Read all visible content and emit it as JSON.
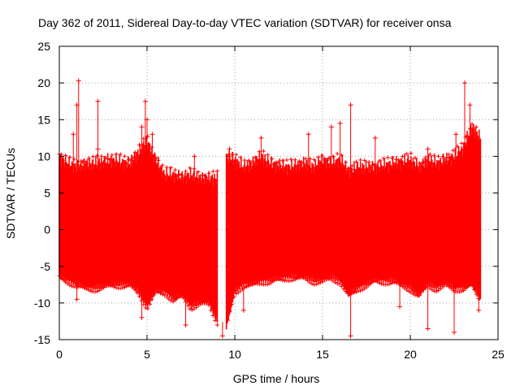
{
  "chart_data": {
    "type": "scatter",
    "title": "Day 362 of 2011, Sidereal Day-to-day VTEC variation (SDTVAR) for receiver onsa",
    "xlabel": "GPS time / hours",
    "ylabel": "SDTVAR / TECUs",
    "xlim": [
      0,
      25
    ],
    "ylim": [
      -15,
      25
    ],
    "xticks": [
      0,
      5,
      10,
      15,
      20,
      25
    ],
    "yticks": [
      -15,
      -10,
      -5,
      0,
      5,
      10,
      15,
      20,
      25
    ],
    "xtick_labels": [
      "0",
      "5",
      "10",
      "15",
      "20",
      "25"
    ],
    "ytick_labels": [
      "-15",
      "-10",
      "-5",
      "0",
      "5",
      "10",
      "15",
      "20",
      "25"
    ],
    "grid": true,
    "marker": "plus",
    "series_color": "#ff0000",
    "envelope": {
      "x": [
        0.0,
        0.5,
        1.0,
        1.5,
        2.0,
        3.0,
        4.0,
        4.5,
        5.0,
        5.5,
        6.0,
        6.5,
        7.0,
        7.5,
        8.0,
        8.5,
        9.0,
        9.5,
        10.0,
        10.5,
        11.0,
        11.5,
        12.0,
        13.0,
        14.0,
        14.5,
        15.0,
        15.5,
        16.0,
        16.5,
        17.0,
        18.0,
        19.0,
        20.0,
        20.5,
        21.0,
        21.5,
        22.0,
        22.5,
        23.0,
        23.5,
        24.0
      ],
      "upper": [
        10.0,
        9.0,
        8.5,
        9.0,
        9.0,
        9.5,
        9.0,
        10.5,
        12.0,
        9.5,
        7.5,
        7.5,
        7.0,
        7.5,
        7.0,
        7.0,
        7.0,
        10.0,
        9.5,
        8.5,
        9.0,
        10.0,
        9.0,
        8.5,
        9.0,
        8.5,
        9.5,
        9.0,
        9.5,
        8.0,
        8.5,
        8.5,
        9.0,
        9.5,
        8.5,
        9.5,
        9.0,
        9.5,
        10.0,
        11.0,
        14.0,
        12.5
      ],
      "lower": [
        -6.0,
        -6.5,
        -7.0,
        -7.5,
        -7.5,
        -7.0,
        -7.0,
        -8.0,
        -10.0,
        -8.0,
        -8.0,
        -9.0,
        -8.5,
        -10.0,
        -9.5,
        -9.5,
        -12.0,
        -13.0,
        -8.0,
        -7.0,
        -7.0,
        -6.5,
        -6.5,
        -6.0,
        -6.0,
        -6.5,
        -6.5,
        -6.0,
        -6.5,
        -8.5,
        -7.5,
        -6.5,
        -6.5,
        -7.5,
        -8.5,
        -7.0,
        -7.5,
        -7.0,
        -7.5,
        -7.5,
        -7.0,
        -9.0
      ]
    },
    "gap": [
      9.0,
      9.5
    ],
    "spikes": [
      {
        "x": 0.8,
        "y": 13.0
      },
      {
        "x": 1.0,
        "y": 17.0
      },
      {
        "x": 1.1,
        "y": 20.3
      },
      {
        "x": 2.2,
        "y": 17.5
      },
      {
        "x": 2.2,
        "y": 11.0
      },
      {
        "x": 4.7,
        "y": 14.0
      },
      {
        "x": 4.9,
        "y": 17.5
      },
      {
        "x": 5.0,
        "y": 15.0
      },
      {
        "x": 5.3,
        "y": 13.0
      },
      {
        "x": 7.7,
        "y": 10.0
      },
      {
        "x": 9.7,
        "y": 11.0
      },
      {
        "x": 11.5,
        "y": 12.5
      },
      {
        "x": 14.2,
        "y": 13.0
      },
      {
        "x": 15.5,
        "y": 14.0
      },
      {
        "x": 16.0,
        "y": 14.5
      },
      {
        "x": 16.6,
        "y": 17.0
      },
      {
        "x": 18.0,
        "y": 12.5
      },
      {
        "x": 21.0,
        "y": 11.0
      },
      {
        "x": 22.6,
        "y": 13.0
      },
      {
        "x": 23.1,
        "y": 20.0
      },
      {
        "x": 23.4,
        "y": 17.0
      },
      {
        "x": 1.0,
        "y": -9.5
      },
      {
        "x": 4.7,
        "y": -12.0
      },
      {
        "x": 7.2,
        "y": -13.0
      },
      {
        "x": 9.3,
        "y": -14.5
      },
      {
        "x": 10.5,
        "y": -11.0
      },
      {
        "x": 16.6,
        "y": -14.5
      },
      {
        "x": 19.4,
        "y": -10.5
      },
      {
        "x": 21.0,
        "y": -13.5
      },
      {
        "x": 22.5,
        "y": -14.0
      },
      {
        "x": 23.9,
        "y": -11.0
      }
    ]
  }
}
